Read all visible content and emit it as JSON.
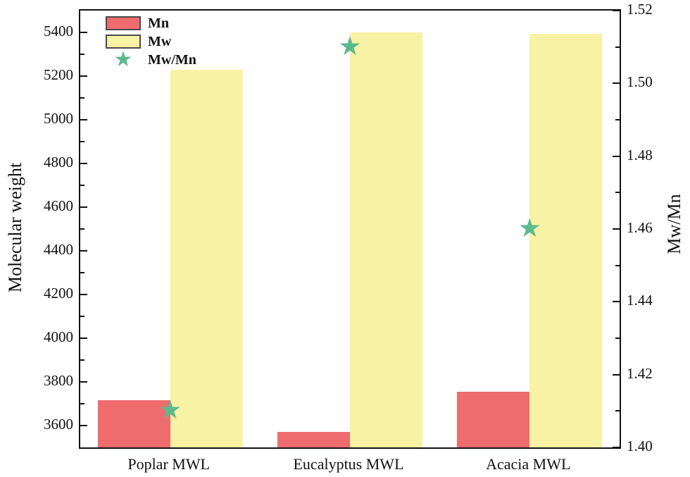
{
  "chart_data": {
    "type": "bar",
    "title": "",
    "categories": [
      "Poplar MWL",
      "Eucalyptus MWL",
      "Acacia MWL"
    ],
    "series": [
      {
        "name": "Mn",
        "axis": "left",
        "marker": "rect",
        "color": "#ef6c6e",
        "values": [
          3715,
          3570,
          3755
        ]
      },
      {
        "name": "Mw",
        "axis": "left",
        "marker": "rect",
        "color": "#f8f2a4",
        "values": [
          5230,
          5400,
          5395
        ]
      },
      {
        "name": "Mw/Mn",
        "axis": "right",
        "marker": "star",
        "color": "#5cba8c",
        "values": [
          1.41,
          1.51,
          1.46
        ]
      }
    ],
    "left_axis": {
      "label": "Molecular weight",
      "min": 3500,
      "max": 5500,
      "major_ticks": [
        3600,
        3800,
        4000,
        4200,
        4400,
        4600,
        4800,
        5000,
        5200,
        5400
      ],
      "minor_step": 100
    },
    "right_axis": {
      "label": "Mw/Mn",
      "min": 1.4,
      "max": 1.52,
      "major_ticks": [
        1.4,
        1.42,
        1.44,
        1.46,
        1.48,
        1.5,
        1.52
      ],
      "minor_step": 0.01,
      "decimals": 2
    },
    "grid": false,
    "legend_position": "top-left",
    "frame_color": "#111111"
  },
  "icons": {
    "star": "★"
  }
}
